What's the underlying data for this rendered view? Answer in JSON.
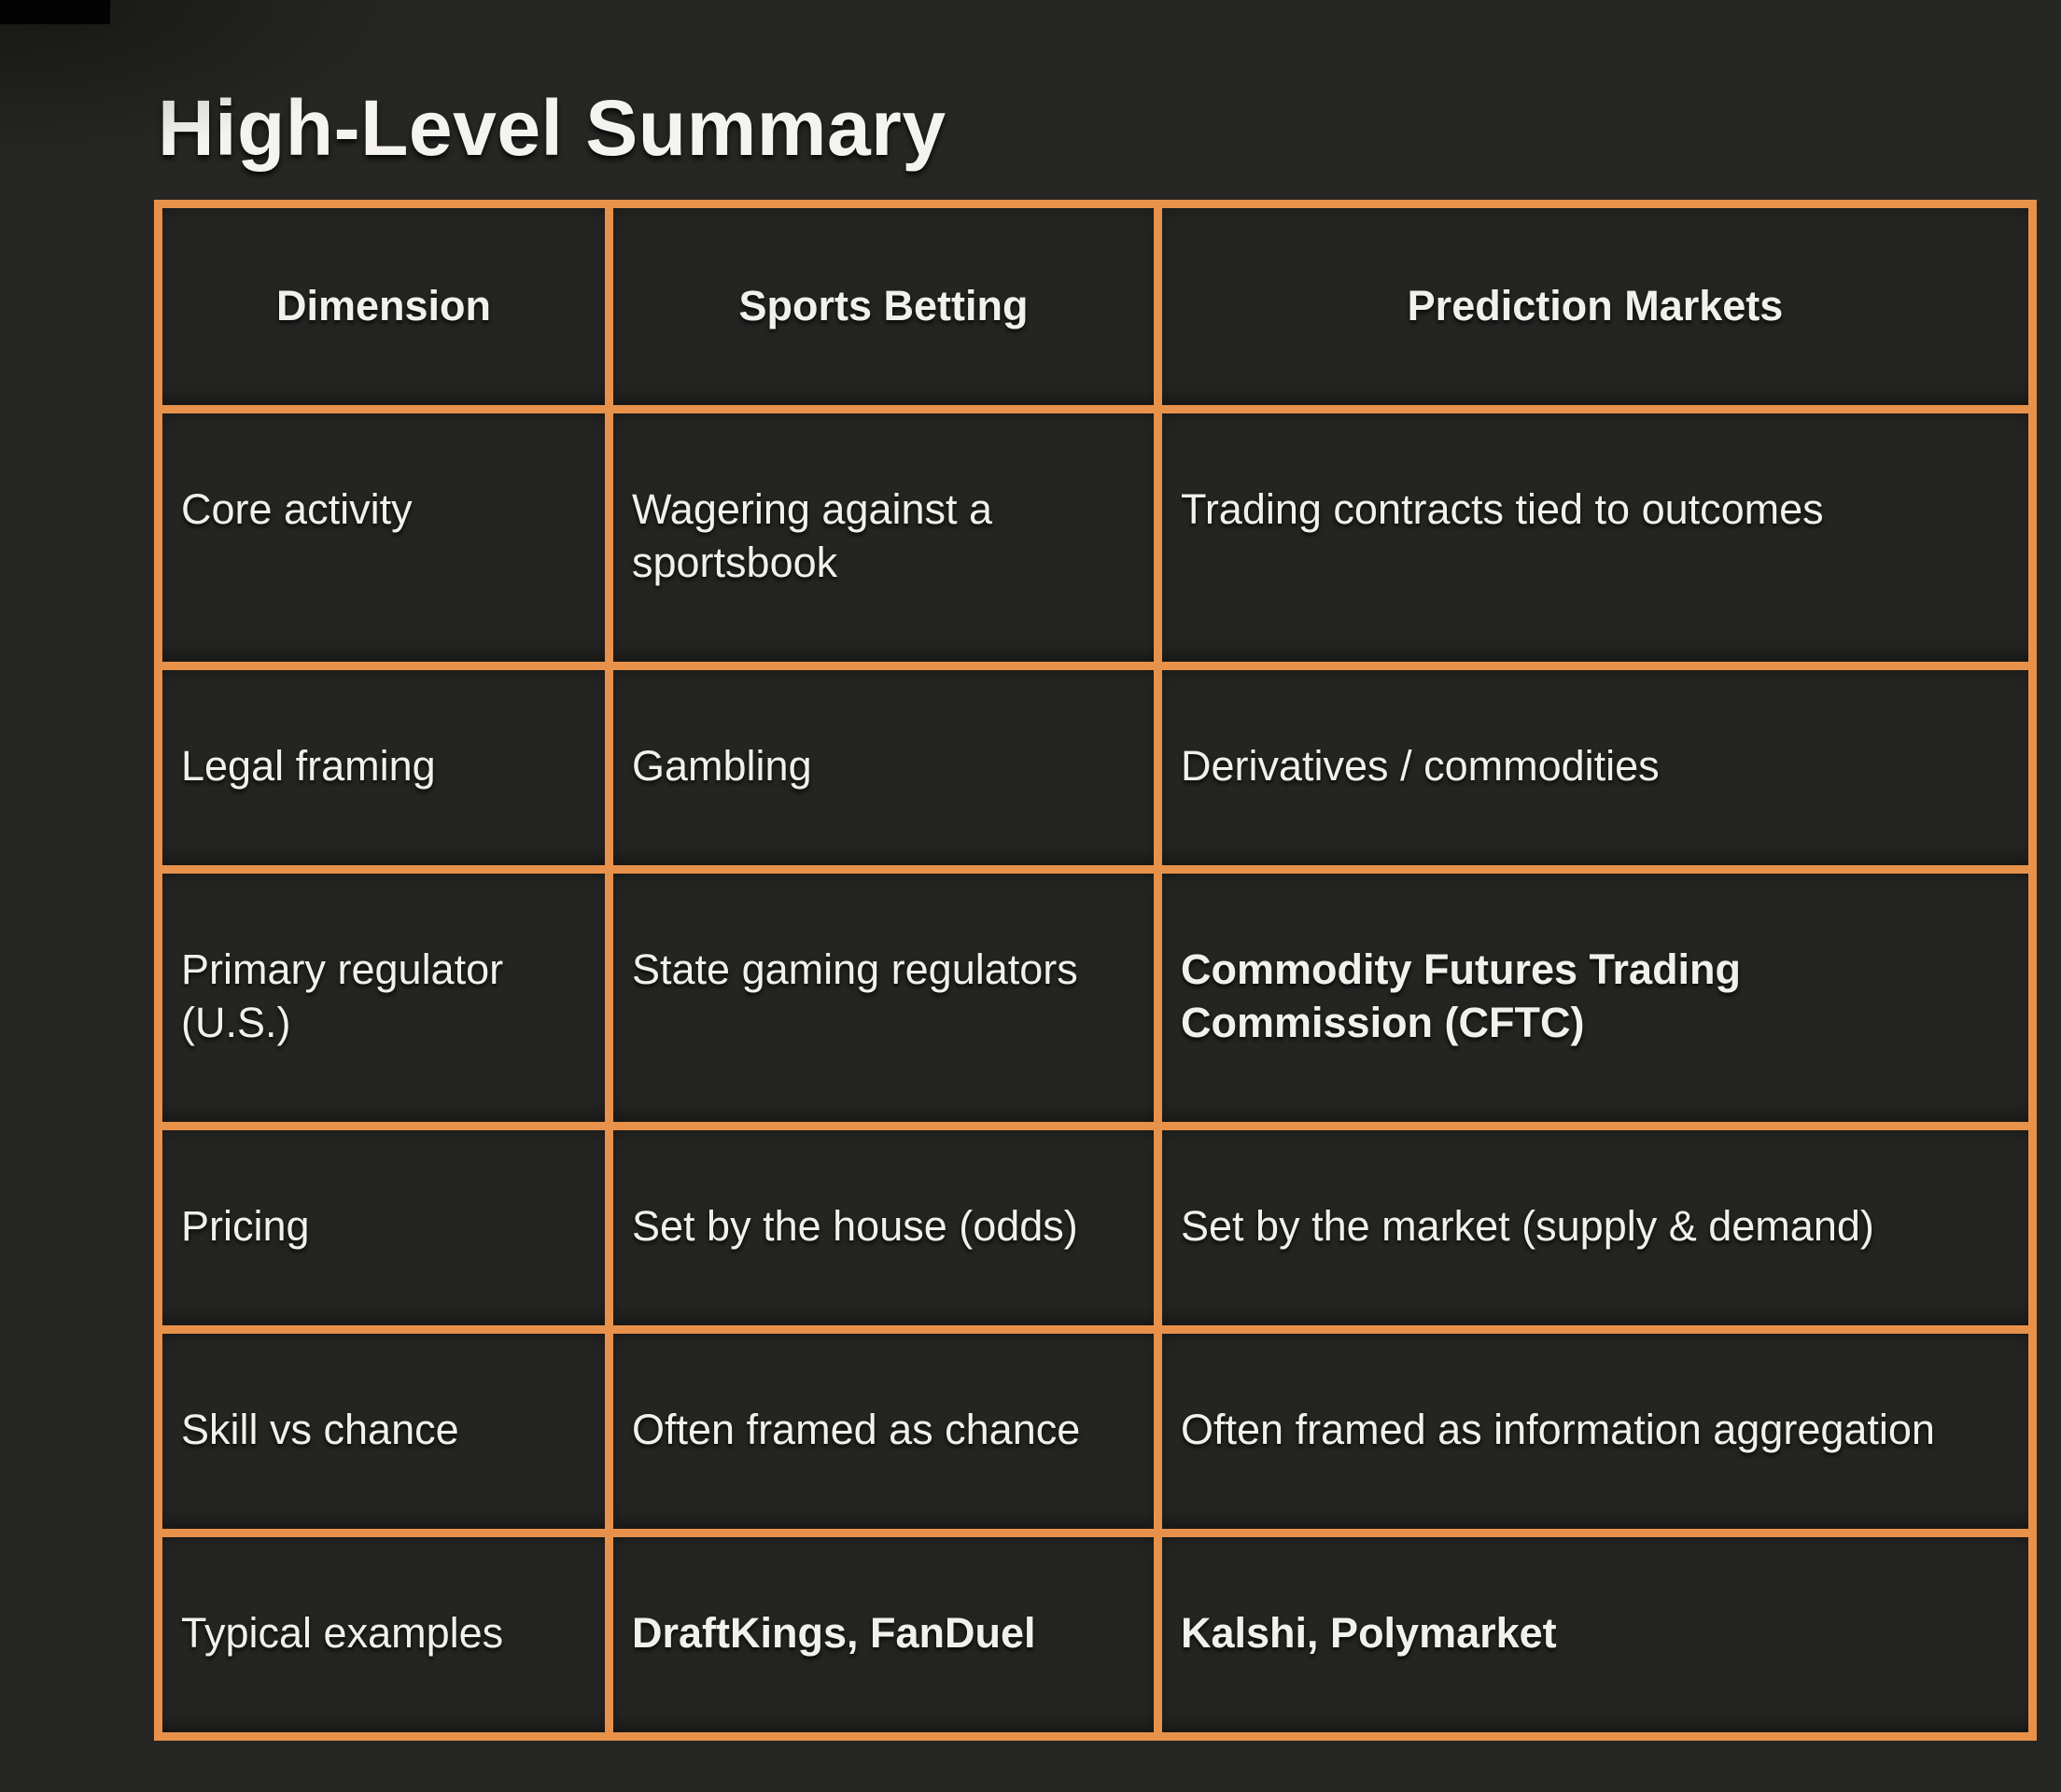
{
  "page": {
    "title": "High-Level Summary"
  },
  "colors": {
    "background": "#262624",
    "table_border": "#e8914a",
    "text": "#f2f0ec"
  },
  "table": {
    "headers": [
      "Dimension",
      "Sports Betting",
      "Prediction Markets"
    ],
    "rows": [
      {
        "cells": [
          {
            "text": "Core activity",
            "bold": false
          },
          {
            "text": "Wagering against a sportsbook",
            "bold": false
          },
          {
            "text": "Trading contracts tied to outcomes",
            "bold": false
          }
        ]
      },
      {
        "cells": [
          {
            "text": "Legal framing",
            "bold": false
          },
          {
            "text": "Gambling",
            "bold": false
          },
          {
            "text": "Derivatives / commodities",
            "bold": false
          }
        ]
      },
      {
        "cells": [
          {
            "text": "Primary regulator (U.S.)",
            "bold": false
          },
          {
            "text": "State gaming regulators",
            "bold": false
          },
          {
            "text": "Commodity Futures Trading Commission (CFTC)",
            "bold": true
          }
        ]
      },
      {
        "cells": [
          {
            "text": "Pricing",
            "bold": false
          },
          {
            "text": "Set by the house (odds)",
            "bold": false
          },
          {
            "text": "Set by the market (supply & demand)",
            "bold": false
          }
        ]
      },
      {
        "cells": [
          {
            "text": "Skill vs chance",
            "bold": false
          },
          {
            "text": "Often framed as chance",
            "bold": false
          },
          {
            "text": "Often framed as information aggregation",
            "bold": false
          }
        ]
      },
      {
        "cells": [
          {
            "text": "Typical examples",
            "bold": false
          },
          {
            "text": "DraftKings, FanDuel",
            "bold": true
          },
          {
            "text": "Kalshi, Polymarket",
            "bold": true
          }
        ]
      }
    ]
  }
}
